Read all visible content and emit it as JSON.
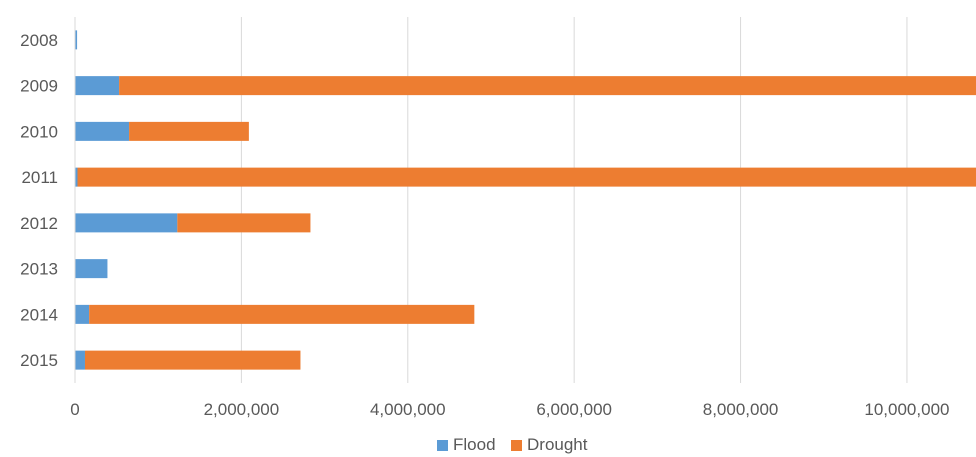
{
  "chart_data": {
    "type": "bar",
    "orientation": "horizontal",
    "stacked": true,
    "title": "",
    "xlabel": "",
    "ylabel": "",
    "categories": [
      "2008",
      "2009",
      "2010",
      "2011",
      "2012",
      "2013",
      "2014",
      "2015"
    ],
    "series": [
      {
        "name": "Flood",
        "color": "#5B9BD5",
        "values": [
          25000,
          530000,
          650000,
          30000,
          1230000,
          390000,
          170000,
          120000
        ]
      },
      {
        "name": "Drought",
        "color": "#ED7D31",
        "values": [
          0,
          10300000,
          1440000,
          10900000,
          1600000,
          0,
          4630000,
          2590000
        ]
      }
    ],
    "x_ticks": [
      "0",
      "2,000,000",
      "4,000,000",
      "6,000,000",
      "8,000,000",
      "10,000,000"
    ],
    "x_tick_values": [
      0,
      2000000,
      4000000,
      6000000,
      8000000,
      10000000
    ],
    "xlim": [
      0,
      10830000
    ],
    "grid": "vertical",
    "legend": {
      "position": "bottom",
      "entries": [
        "Flood",
        "Drought"
      ]
    },
    "gridline_color": "#D9D9D9"
  }
}
